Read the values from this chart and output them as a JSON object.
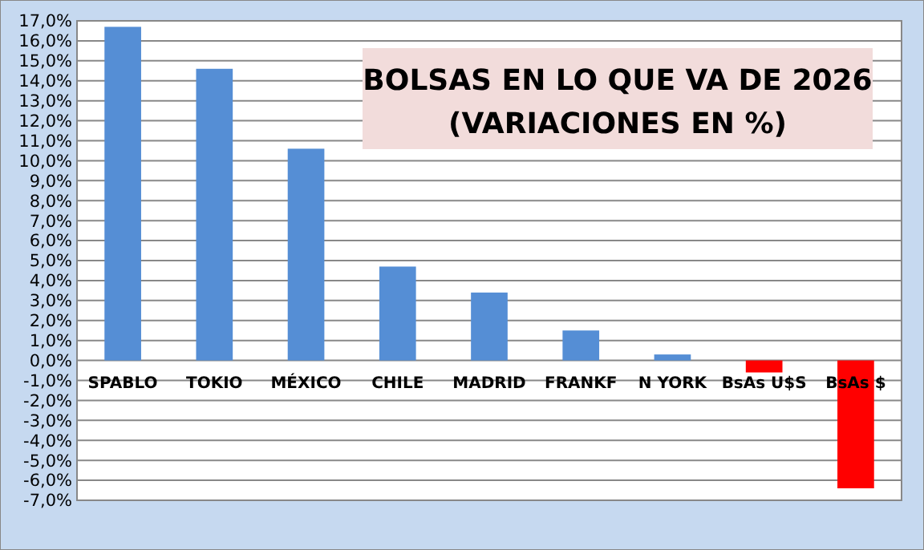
{
  "chart_data": {
    "type": "bar",
    "title": "BOLSAS EN LO QUE VA DE 2026",
    "subtitle": "(VARIACIONES EN %)",
    "categories": [
      "SPABLO",
      "TOKIO",
      "MÉXICO",
      "CHILE",
      "MADRID",
      "FRANKF",
      "N YORK",
      "BsAs U$S",
      "BsAs $"
    ],
    "values": [
      16.7,
      14.6,
      10.6,
      4.7,
      3.4,
      1.5,
      0.3,
      -0.6,
      -6.4
    ],
    "colors": [
      "#558ed5",
      "#558ed5",
      "#558ed5",
      "#558ed5",
      "#558ed5",
      "#558ed5",
      "#558ed5",
      "#ff0000",
      "#ff0000"
    ],
    "ylim": [
      -7,
      17
    ],
    "yticks": [
      {
        "value": -7,
        "label": "-7,0%"
      },
      {
        "value": -6,
        "label": "-6,0%"
      },
      {
        "value": -5,
        "label": "-5,0%"
      },
      {
        "value": -4,
        "label": "-4,0%"
      },
      {
        "value": -3,
        "label": "-3,0%"
      },
      {
        "value": -2,
        "label": "-2,0%"
      },
      {
        "value": -1,
        "label": "-1,0%"
      },
      {
        "value": 0,
        "label": "0,0%"
      },
      {
        "value": 1,
        "label": "1,0%"
      },
      {
        "value": 2,
        "label": "2,0%"
      },
      {
        "value": 3,
        "label": "3,0%"
      },
      {
        "value": 4,
        "label": "4,0%"
      },
      {
        "value": 5,
        "label": "5,0%"
      },
      {
        "value": 6,
        "label": "6,0%"
      },
      {
        "value": 7,
        "label": "7,0%"
      },
      {
        "value": 8,
        "label": "8,0%"
      },
      {
        "value": 9,
        "label": "9,0%"
      },
      {
        "value": 10,
        "label": "10,0%"
      },
      {
        "value": 11,
        "label": "11,0%"
      },
      {
        "value": 12,
        "label": "12,0%"
      },
      {
        "value": 13,
        "label": "13,0%"
      },
      {
        "value": 14,
        "label": "14,0%"
      },
      {
        "value": 15,
        "label": "15,0%"
      },
      {
        "value": 16,
        "label": "16,0%"
      },
      {
        "value": 17,
        "label": "17,0%"
      }
    ],
    "grid": "y"
  }
}
